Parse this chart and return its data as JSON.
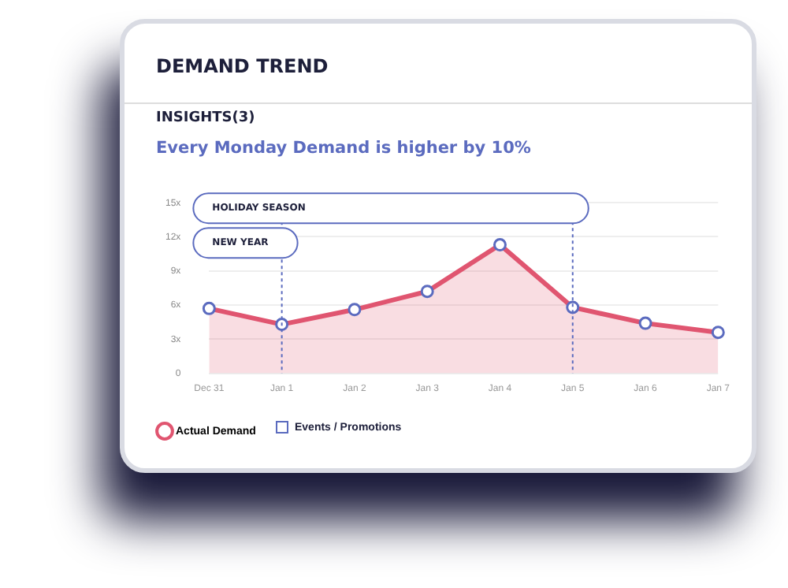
{
  "chart_data": {
    "type": "area",
    "title": "DEMAND TREND",
    "subtitle": "INSIGHTS(3)",
    "annotations": [
      "Every Monday Demand is higher by 10%",
      "Events / Promotions"
    ],
    "categories": [
      "Dec 31",
      "Jan 1",
      "Jan 2",
      "Jan 3",
      "Jan 4",
      "Jan 5",
      "Jan 6",
      "Jan 7"
    ],
    "series": [
      {
        "name": "Actual Demand",
        "color": "#e05570",
        "values": [
          5.7,
          4.3,
          5.6,
          7.2,
          11.3,
          5.8,
          4.4,
          3.6
        ]
      }
    ],
    "ylim": [
      0,
      15
    ],
    "yticks": [
      0,
      {
        "value": 3,
        "label": "3x"
      },
      {
        "value": 6,
        "label": "6x"
      },
      {
        "value": 9,
        "label": "9x"
      },
      {
        "value": 12,
        "label": "12x"
      },
      {
        "value": 15,
        "label": "15x"
      }
    ],
    "grid": "y",
    "legend": "bottom left",
    "marker": "circle",
    "bands": [
      {
        "axis": "x",
        "from": "Dec 31",
        "to": "Jan 5",
        "label": "HOLIDAY SEASON",
        "color": "#5b6bbf"
      },
      {
        "axis": "x",
        "from": "Dec 31",
        "to": "Jan 1",
        "label": "NEW YEAR",
        "color": "#5b6bbf"
      }
    ],
    "ref_lines": [
      {
        "axis": "x",
        "value": "Jan 1",
        "color": "#5b6bbf",
        "line_style": "dashed"
      },
      {
        "axis": "x",
        "value": "Jan 5",
        "color": "#5b6bbf",
        "line_style": "dashed"
      }
    ]
  }
}
